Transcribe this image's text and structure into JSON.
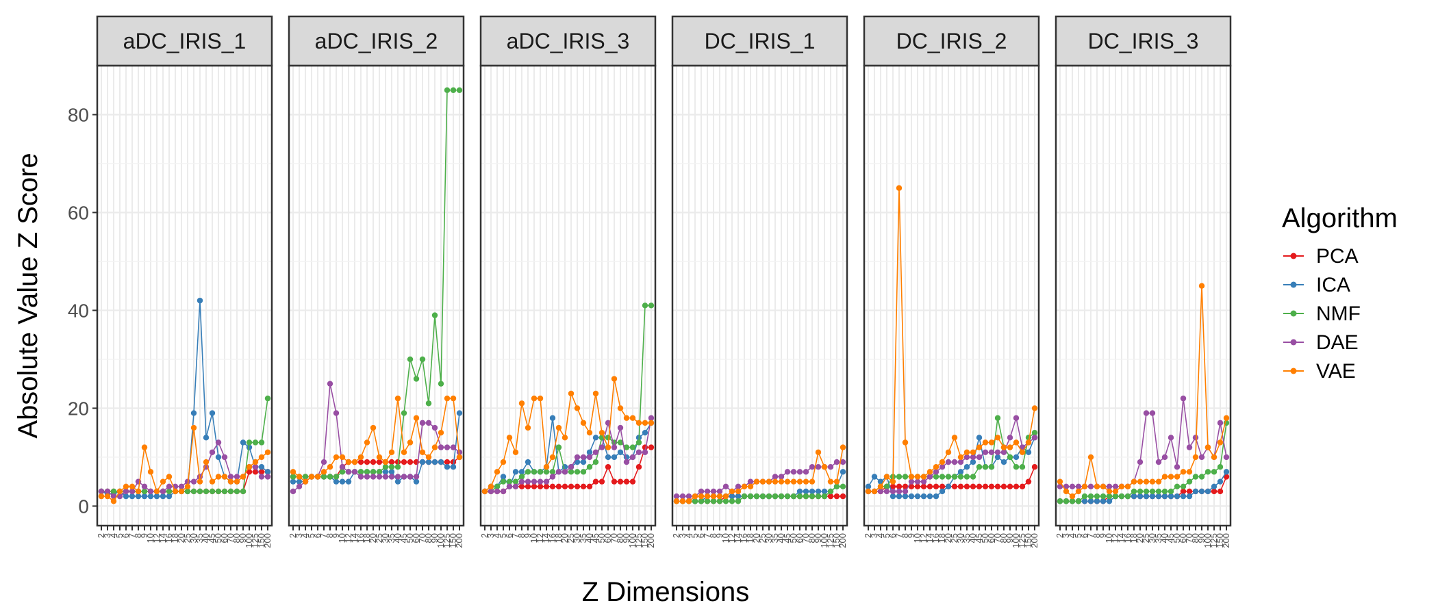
{
  "chart_data": {
    "type": "line",
    "xlabel": "Z Dimensions",
    "ylabel": "Absolute Value Z Score",
    "ylim": [
      -4,
      90
    ],
    "yticks": [
      0,
      20,
      40,
      60,
      80
    ],
    "grid": true,
    "legend_position": "right",
    "legend_title": "Algorithm",
    "x": [
      2,
      3,
      4,
      5,
      6,
      7,
      8,
      9,
      10,
      12,
      14,
      16,
      18,
      20,
      25,
      30,
      35,
      40,
      45,
      50,
      60,
      70,
      80,
      90,
      100,
      125,
      150,
      200
    ],
    "x_tick_labels": [
      "2",
      "3",
      "4",
      "5",
      "6",
      "7",
      "8",
      "9",
      "10",
      "12",
      "14",
      "16",
      "18",
      "20",
      "25",
      "30",
      "35",
      "40",
      "45",
      "50",
      "60",
      "70",
      "80",
      "90",
      "100",
      "125",
      "150",
      "200"
    ],
    "series_styles": [
      {
        "name": "PCA",
        "color": "#E41A1C"
      },
      {
        "name": "ICA",
        "color": "#377EB8"
      },
      {
        "name": "NMF",
        "color": "#4DAF4A"
      },
      {
        "name": "DAE",
        "color": "#984EA3"
      },
      {
        "name": "VAE",
        "color": "#FF7F00"
      }
    ],
    "panels": [
      {
        "title": "aDC_IRIS_1",
        "series": [
          {
            "name": "PCA",
            "values": [
              3,
              3,
              3,
              3,
              3,
              3,
              3,
              3,
              3,
              3,
              3,
              3,
              3,
              3,
              3,
              3,
              3,
              3,
              3,
              3,
              3,
              3,
              3,
              3,
              7,
              7,
              7,
              7
            ]
          },
          {
            "name": "ICA",
            "values": [
              3,
              2.5,
              2.5,
              3,
              2,
              2,
              2,
              2,
              2,
              2,
              2,
              2,
              3,
              3,
              3,
              19,
              42,
              14,
              19,
              10,
              6,
              5,
              5,
              13,
              12,
              8,
              8,
              7
            ]
          },
          {
            "name": "NMF",
            "values": [
              3,
              3,
              3,
              3,
              3,
              3,
              3,
              3,
              3,
              3,
              3,
              3,
              3,
              3,
              3,
              3,
              3,
              3,
              3,
              3,
              3,
              3,
              3,
              3,
              13,
              13,
              13,
              22
            ]
          },
          {
            "name": "DAE",
            "values": [
              3,
              3,
              2,
              2,
              3,
              3,
              5,
              4,
              3,
              3,
              3,
              4,
              4,
              4,
              5,
              5,
              6,
              8,
              11,
              13,
              10,
              6,
              6,
              6,
              8,
              8,
              6,
              6
            ]
          },
          {
            "name": "VAE",
            "values": [
              2,
              2,
              1,
              3,
              4,
              4,
              3,
              12,
              7,
              3,
              5,
              6,
              3,
              3,
              4,
              16,
              5,
              9,
              5,
              6,
              6,
              5,
              5,
              6,
              8,
              9,
              10,
              11
            ]
          }
        ]
      },
      {
        "title": "aDC_IRIS_2",
        "series": [
          {
            "name": "PCA",
            "values": [
              6,
              6,
              6,
              6,
              6,
              6,
              6,
              6,
              8,
              9,
              9,
              9,
              9,
              9,
              9,
              9,
              9,
              9,
              9,
              9,
              9,
              9,
              9,
              9,
              9,
              9,
              9,
              10
            ]
          },
          {
            "name": "ICA",
            "values": [
              5,
              5,
              5,
              6,
              6,
              6,
              6,
              5,
              5,
              5,
              7,
              7,
              7,
              7,
              7,
              7,
              7,
              5,
              6,
              6,
              5,
              9,
              9,
              9,
              9,
              8,
              8,
              19
            ]
          },
          {
            "name": "NMF",
            "values": [
              6,
              6,
              6,
              6,
              6,
              6,
              6,
              6,
              7,
              7,
              7,
              7,
              7,
              7,
              7,
              8,
              8,
              8,
              19,
              30,
              26,
              30,
              21,
              39,
              25,
              85,
              85,
              85
            ]
          },
          {
            "name": "DAE",
            "values": [
              3,
              4,
              5,
              6,
              6,
              9,
              25,
              19,
              8,
              7,
              7,
              6,
              6,
              6,
              6,
              6,
              6,
              6,
              6,
              6,
              6,
              17,
              17,
              16,
              12,
              12,
              12,
              11
            ]
          },
          {
            "name": "VAE",
            "values": [
              7,
              6,
              5,
              6,
              6,
              7,
              8,
              10,
              10,
              9,
              9,
              10,
              13,
              16,
              10,
              9,
              11,
              22,
              11,
              13,
              18,
              11,
              10,
              12,
              15,
              22,
              22,
              10
            ]
          }
        ]
      },
      {
        "title": "aDC_IRIS_3",
        "series": [
          {
            "name": "PCA",
            "values": [
              3,
              3,
              3,
              3,
              4,
              4,
              4,
              4,
              4,
              4,
              4,
              4,
              4,
              4,
              4,
              4,
              4,
              4,
              5,
              5,
              8,
              5,
              5,
              5,
              5,
              8,
              12,
              12
            ]
          },
          {
            "name": "ICA",
            "values": [
              3,
              4,
              4,
              6,
              4,
              7,
              7,
              9,
              7,
              7,
              8,
              18,
              7,
              8,
              8,
              9,
              9,
              11,
              14,
              14,
              10,
              10,
              11,
              10,
              10,
              14,
              15,
              17
            ]
          },
          {
            "name": "NMF",
            "values": [
              3,
              3,
              4,
              5,
              5,
              5,
              6,
              7,
              7,
              7,
              7,
              7,
              12,
              7,
              7,
              7,
              7,
              8,
              9,
              14,
              14,
              13,
              13,
              12,
              12,
              13,
              41,
              41
            ]
          },
          {
            "name": "DAE",
            "values": [
              3,
              3,
              3,
              3,
              4,
              4,
              5,
              5,
              5,
              5,
              5,
              6,
              7,
              7,
              8,
              10,
              10,
              10,
              11,
              12,
              17,
              12,
              16,
              9,
              10,
              11,
              11,
              18
            ]
          },
          {
            "name": "VAE",
            "values": [
              3,
              4,
              7,
              9,
              14,
              11,
              21,
              16,
              22,
              22,
              8,
              10,
              16,
              14,
              23,
              20,
              17,
              15,
              23,
              15,
              12,
              26,
              20,
              18,
              18,
              17,
              17,
              17
            ]
          }
        ]
      },
      {
        "title": "DC_IRIS_1",
        "series": [
          {
            "name": "PCA",
            "values": [
              1,
              1,
              1,
              1,
              1,
              1,
              1,
              1,
              2,
              2,
              2,
              2,
              2,
              2,
              2,
              2,
              2,
              2,
              2,
              2,
              2,
              2,
              2,
              2,
              2,
              2,
              2,
              2
            ]
          },
          {
            "name": "ICA",
            "values": [
              1,
              1,
              1,
              1,
              1,
              2,
              2,
              2,
              2,
              2,
              2,
              2,
              2,
              2,
              2,
              2,
              2,
              2,
              2,
              2,
              3,
              3,
              3,
              3,
              3,
              3,
              4,
              7
            ]
          },
          {
            "name": "NMF",
            "values": [
              1,
              1,
              1,
              1,
              1,
              1,
              1,
              1,
              1,
              1,
              1,
              2,
              2,
              2,
              2,
              2,
              2,
              2,
              2,
              2,
              2,
              2,
              2,
              2,
              2,
              3,
              4,
              4
            ]
          },
          {
            "name": "DAE",
            "values": [
              2,
              2,
              2,
              2,
              3,
              3,
              3,
              3,
              4,
              3,
              4,
              4,
              5,
              5,
              5,
              5,
              6,
              6,
              7,
              7,
              7,
              7,
              8,
              8,
              8,
              8,
              9,
              9
            ]
          },
          {
            "name": "VAE",
            "values": [
              1,
              1,
              1,
              2,
              2,
              2,
              2,
              2,
              2,
              3,
              3,
              4,
              4,
              5,
              5,
              5,
              5,
              5,
              5,
              5,
              5,
              5,
              5,
              11,
              8,
              5,
              5,
              12
            ]
          }
        ]
      },
      {
        "title": "DC_IRIS_2",
        "series": [
          {
            "name": "PCA",
            "values": [
              3,
              3,
              3,
              4,
              4,
              4,
              4,
              4,
              4,
              4,
              4,
              4,
              4,
              4,
              4,
              4,
              4,
              4,
              4,
              4,
              4,
              4,
              4,
              4,
              4,
              4,
              5,
              8
            ]
          },
          {
            "name": "ICA",
            "values": [
              4,
              6,
              5,
              6,
              2,
              2,
              2,
              2,
              2,
              2,
              2,
              2,
              3,
              4,
              6,
              7,
              8,
              9,
              14,
              8,
              8,
              10,
              9,
              10,
              10,
              12,
              11,
              14
            ]
          },
          {
            "name": "NMF",
            "values": [
              3,
              3,
              4,
              4,
              6,
              6,
              6,
              6,
              6,
              6,
              6,
              6,
              6,
              6,
              6,
              6,
              6,
              6,
              8,
              8,
              8,
              18,
              12,
              10,
              8,
              8,
              14,
              15
            ]
          },
          {
            "name": "DAE",
            "values": [
              3,
              3,
              3,
              3,
              3,
              3,
              3,
              5,
              5,
              5,
              6,
              7,
              8,
              9,
              9,
              9,
              10,
              10,
              10,
              11,
              11,
              11,
              11,
              14,
              18,
              12,
              13,
              14
            ]
          },
          {
            "name": "VAE",
            "values": [
              3,
              3,
              4,
              6,
              5,
              65,
              13,
              6,
              6,
              6,
              7,
              8,
              9,
              11,
              14,
              10,
              11,
              11,
              12,
              13,
              13,
              14,
              12,
              12,
              13,
              11,
              13,
              20
            ]
          }
        ]
      },
      {
        "title": "DC_IRIS_3",
        "series": [
          {
            "name": "PCA",
            "values": [
              1,
              1,
              1,
              1,
              1,
              1,
              1,
              1,
              2,
              2,
              2,
              2,
              2,
              2,
              2,
              2,
              2,
              2,
              2,
              2,
              3,
              3,
              3,
              3,
              3,
              3,
              3,
              6
            ]
          },
          {
            "name": "ICA",
            "values": [
              1,
              1,
              1,
              1,
              1,
              1,
              1,
              1,
              1,
              2,
              2,
              2,
              2,
              2,
              2,
              2,
              2,
              2,
              2,
              2,
              2,
              2,
              3,
              3,
              3,
              4,
              5,
              7
            ]
          },
          {
            "name": "NMF",
            "values": [
              1,
              1,
              1,
              1,
              2,
              2,
              2,
              2,
              2,
              2,
              2,
              2,
              3,
              3,
              3,
              3,
              3,
              3,
              3,
              4,
              4,
              5,
              6,
              6,
              7,
              7,
              8,
              17
            ]
          },
          {
            "name": "DAE",
            "values": [
              4,
              4,
              4,
              4,
              4,
              4,
              4,
              4,
              4,
              4,
              4,
              4,
              5,
              9,
              19,
              19,
              9,
              10,
              14,
              8,
              22,
              12,
              14,
              10,
              12,
              10,
              17,
              10
            ]
          },
          {
            "name": "VAE",
            "values": [
              5,
              3,
              2,
              3,
              4,
              10,
              4,
              4,
              3,
              3,
              4,
              4,
              5,
              5,
              5,
              5,
              5,
              6,
              6,
              6,
              7,
              7,
              10,
              45,
              12,
              10,
              13,
              18
            ]
          }
        ]
      }
    ]
  }
}
